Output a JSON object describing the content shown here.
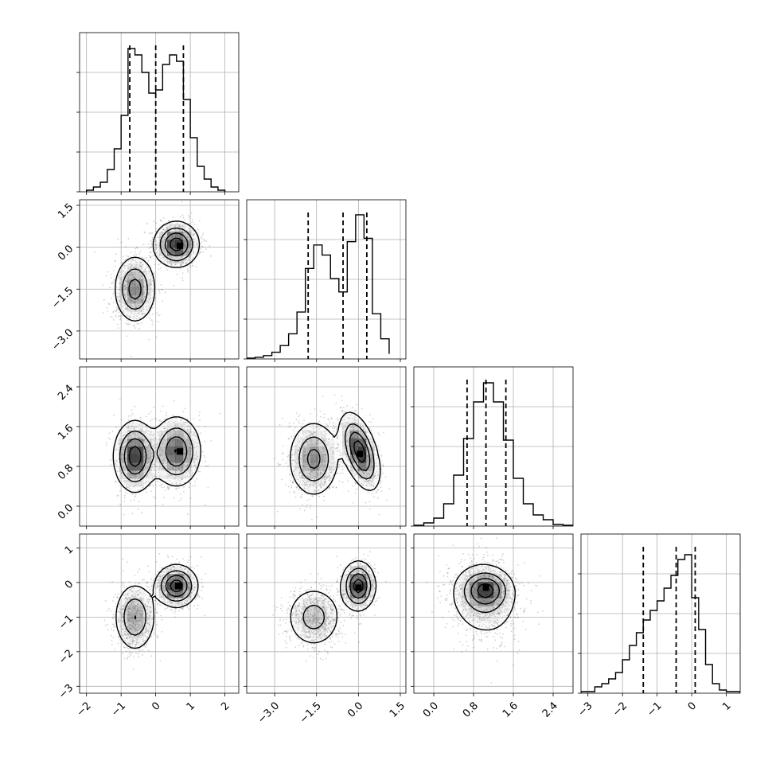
{
  "chart_data": {
    "type": "corner",
    "grid": true,
    "params": [
      {
        "range": [
          -2.2,
          2.4
        ],
        "ticks": [
          -2,
          -1,
          0,
          1,
          2
        ],
        "tick_labels": [
          "−2",
          "−1",
          "0",
          "1",
          "2"
        ],
        "quantiles": [
          -0.75,
          0.0,
          0.8
        ],
        "hist": {
          "bins": [
            -2.0,
            -1.8,
            -1.6,
            -1.4,
            -1.2,
            -1.0,
            -0.8,
            -0.6,
            -0.4,
            -0.2,
            0.0,
            0.2,
            0.4,
            0.6,
            0.8,
            1.0,
            1.2,
            1.4,
            1.6,
            1.8,
            2.0
          ],
          "counts": [
            1,
            3,
            6,
            14,
            27,
            48,
            90,
            86,
            75,
            62,
            64,
            80,
            86,
            82,
            58,
            34,
            16,
            8,
            3,
            1
          ]
        },
        "hist_ymax": 100,
        "hist_yticks": [
          50,
          0
        ]
      },
      {
        "range": [
          -4.0,
          1.7
        ],
        "ticks": [
          -3.0,
          -1.5,
          0.0,
          1.5
        ],
        "tick_labels": [
          "−3.0",
          "−1.5",
          "0.0",
          "1.5"
        ],
        "quantiles": [
          -1.8,
          -0.55,
          0.3
        ],
        "hist": {
          "bins": [
            -4.0,
            -3.7,
            -3.4,
            -3.1,
            -2.8,
            -2.5,
            -2.2,
            -1.9,
            -1.6,
            -1.3,
            -1.0,
            -0.7,
            -0.4,
            -0.1,
            0.2,
            0.5,
            0.8,
            1.1
          ],
          "counts": [
            0.5,
            1,
            2,
            4,
            8,
            15,
            28,
            54,
            68,
            62,
            48,
            40,
            70,
            86,
            72,
            27,
            12,
            3
          ]
        },
        "hist_ymax": 95,
        "hist_yticks": []
      },
      {
        "range": [
          -0.4,
          2.8
        ],
        "ticks": [
          0.0,
          0.8,
          1.6,
          2.4
        ],
        "tick_labels": [
          "0.0",
          "0.8",
          "1.6",
          "2.4"
        ],
        "quantiles": [
          0.67,
          1.05,
          1.45
        ],
        "hist": {
          "bins": [
            -0.4,
            -0.2,
            0.0,
            0.2,
            0.4,
            0.6,
            0.8,
            1.0,
            1.2,
            1.4,
            1.6,
            1.8,
            2.0,
            2.2,
            2.4,
            2.6,
            2.8
          ],
          "counts": [
            0.5,
            2,
            5,
            14,
            32,
            55,
            78,
            90,
            78,
            54,
            30,
            14,
            7,
            4,
            1,
            0.5
          ]
        },
        "hist_ymax": 100,
        "hist_yticks": []
      },
      {
        "range": [
          -3.2,
          1.4
        ],
        "ticks": [
          -3,
          -2,
          -1,
          0,
          1
        ],
        "tick_labels": [
          "−3",
          "−2",
          "−1",
          "0",
          "1"
        ],
        "quantiles": [
          -1.4,
          -0.45,
          0.1
        ],
        "hist": {
          "bins": [
            -3.2,
            -3.0,
            -2.8,
            -2.6,
            -2.4,
            -2.2,
            -2.0,
            -1.8,
            -1.6,
            -1.4,
            -1.2,
            -1.0,
            -0.8,
            -0.6,
            -0.4,
            -0.2,
            0.0,
            0.2,
            0.4,
            0.6,
            0.8,
            1.0,
            1.2,
            1.4
          ],
          "counts": [
            1,
            1,
            4,
            6,
            9,
            13,
            21,
            30,
            38,
            46,
            52,
            58,
            66,
            74,
            84,
            87,
            60,
            40,
            18,
            6,
            2,
            1,
            1
          ]
        },
        "hist_ymax": 100,
        "hist_yticks": []
      }
    ],
    "pairs": [
      {
        "x": 0,
        "y": 1,
        "modes": [
          {
            "mx": -0.6,
            "my": -1.5,
            "sx": 0.3,
            "sy": 0.6,
            "rho": 0.0,
            "w": 0.5
          },
          {
            "mx": 0.6,
            "my": 0.1,
            "sx": 0.32,
            "sy": 0.4,
            "rho": 0.0,
            "w": 0.5
          }
        ],
        "max_marker": [
          0.7,
          0.05
        ]
      },
      {
        "x": 0,
        "y": 2,
        "modes": [
          {
            "mx": -0.6,
            "my": 1.0,
            "sx": 0.3,
            "sy": 0.35,
            "rho": 0.0,
            "w": 0.5
          },
          {
            "mx": 0.6,
            "my": 1.1,
            "sx": 0.35,
            "sy": 0.35,
            "rho": 0.0,
            "w": 0.5
          }
        ],
        "max_marker": [
          0.7,
          1.1
        ]
      },
      {
        "x": 1,
        "y": 2,
        "modes": [
          {
            "mx": -1.6,
            "my": 0.95,
            "sx": 0.45,
            "sy": 0.38,
            "rho": 0.0,
            "w": 0.5
          },
          {
            "mx": 0.05,
            "my": 1.1,
            "sx": 0.35,
            "sy": 0.38,
            "rho": -0.5,
            "w": 0.5
          }
        ],
        "max_marker": [
          0.05,
          1.05
        ]
      },
      {
        "x": 0,
        "y": 3,
        "modes": [
          {
            "mx": -0.6,
            "my": -1.0,
            "sx": 0.3,
            "sy": 0.5,
            "rho": 0.0,
            "w": 0.5
          },
          {
            "mx": 0.6,
            "my": -0.1,
            "sx": 0.3,
            "sy": 0.3,
            "rho": 0.0,
            "w": 0.5
          }
        ],
        "max_marker": [
          0.65,
          -0.1
        ]
      },
      {
        "x": 1,
        "y": 3,
        "modes": [
          {
            "mx": -1.6,
            "my": -1.0,
            "sx": 0.5,
            "sy": 0.45,
            "rho": 0.0,
            "w": 0.5
          },
          {
            "mx": 0.0,
            "my": -0.1,
            "sx": 0.3,
            "sy": 0.35,
            "rho": 0.0,
            "w": 0.5
          }
        ],
        "max_marker": [
          0.0,
          -0.15
        ]
      },
      {
        "x": 2,
        "y": 3,
        "modes": [
          {
            "mx": 1.0,
            "my": -0.5,
            "sx": 0.38,
            "sy": 0.6,
            "rho": -0.1,
            "w": 0.6
          },
          {
            "mx": 1.05,
            "my": -0.2,
            "sx": 0.25,
            "sy": 0.3,
            "rho": 0.0,
            "w": 0.4
          }
        ],
        "max_marker": [
          1.05,
          -0.15
        ]
      }
    ]
  }
}
